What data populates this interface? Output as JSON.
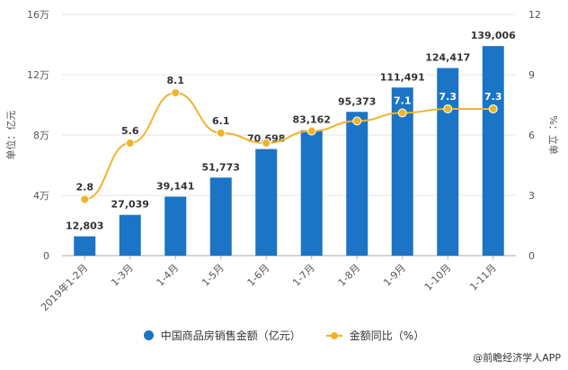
{
  "chart_data": {
    "type": "bar",
    "categories": [
      "2019年1-2月",
      "1-3月",
      "1-4月",
      "1-5月",
      "1-6月",
      "1-7月",
      "1-8月",
      "1-9月",
      "1-10月",
      "1-11月"
    ],
    "series": [
      {
        "name": "中国商品房销售金额（亿元）",
        "type": "bar",
        "axis": "left",
        "color": "#1b74c5",
        "values": [
          12803,
          27039,
          39141,
          51773,
          70698,
          83162,
          95373,
          111491,
          124417,
          139006
        ],
        "labels": [
          "12,803",
          "27,039",
          "39,141",
          "51,773",
          "70,698",
          "83,162",
          "95,373",
          "111,491",
          "124,417",
          "139,006"
        ]
      },
      {
        "name": "金额同比（%）",
        "type": "line",
        "axis": "right",
        "color": "#f0b429",
        "values": [
          2.8,
          5.6,
          8.1,
          6.1,
          5.6,
          6.2,
          6.7,
          7.1,
          7.3,
          7.3
        ],
        "labels": [
          "2.8",
          "5.6",
          "8.1",
          "6.1",
          "",
          "",
          "",
          "7.1",
          "7.3",
          "7.3"
        ]
      }
    ],
    "ylabel": "单位：亿元",
    "y2label": "%：立单",
    "ylim": [
      0,
      160000
    ],
    "y2lim": [
      0,
      12
    ],
    "yticks": [
      "0",
      "4万",
      "8万",
      "12万",
      "16万"
    ],
    "y2ticks": [
      "0",
      "3",
      "6",
      "9",
      "12"
    ],
    "grid": true,
    "legend": "bottom-center"
  },
  "legend": {
    "bar": "中国商品房销售金额（亿元）",
    "line": "金额同比（%）"
  },
  "source": "@前瞻经济学人APP"
}
